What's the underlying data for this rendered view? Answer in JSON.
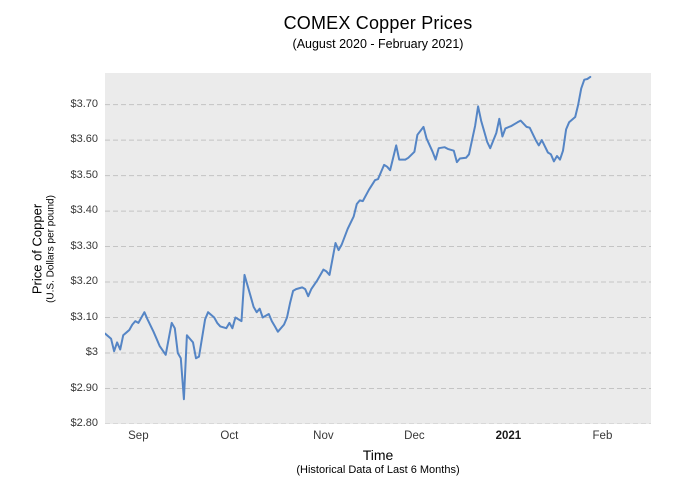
{
  "title": "COMEX Copper Prices",
  "subtitle": "(August 2020 - February 2021)",
  "y_axis": {
    "title": "Price of Copper",
    "subtitle": "(U.S. Dollars per pound)"
  },
  "x_axis": {
    "title": "Time",
    "subtitle": "(Historical Data of Last 6 Months)"
  },
  "colors": {
    "page_background": "#ffffff",
    "plot_background": "#ebebeb",
    "gridline": "#c4c4c4",
    "line": "#5585c5",
    "tick_text": "#373737"
  },
  "chart_data": {
    "type": "line",
    "title": "COMEX Copper Prices",
    "subtitle": "(August 2020 - February 2021)",
    "xlabel": "Time (Historical Data of Last 6 Months)",
    "ylabel": "Price of Copper (U.S. Dollars per pound)",
    "legend": "none",
    "grid": "horizontal-dashed",
    "ylim": [
      2.8,
      3.789
    ],
    "x_range": {
      "start": "2020-08-21",
      "end": "2021-02-17"
    },
    "y_ticks": [
      {
        "label": "$3.70",
        "value": 3.7
      },
      {
        "label": "$3.60",
        "value": 3.6
      },
      {
        "label": "$3.50",
        "value": 3.5
      },
      {
        "label": "$3.40",
        "value": 3.4
      },
      {
        "label": "$3.30",
        "value": 3.3
      },
      {
        "label": "$3.20",
        "value": 3.2
      },
      {
        "label": "$3.10",
        "value": 3.1
      },
      {
        "label": "$3",
        "value": 3.0
      },
      {
        "label": "$2.90",
        "value": 2.9
      },
      {
        "label": "$2.80",
        "value": 2.8
      }
    ],
    "x_ticks": [
      {
        "label": "Sep",
        "date": "2020-09-01",
        "bold": false
      },
      {
        "label": "Oct",
        "date": "2020-10-01",
        "bold": false
      },
      {
        "label": "Nov",
        "date": "2020-11-01",
        "bold": false
      },
      {
        "label": "Dec",
        "date": "2020-12-01",
        "bold": false
      },
      {
        "label": "2021",
        "date": "2021-01-01",
        "bold": true
      },
      {
        "label": "Feb",
        "date": "2021-02-01",
        "bold": false
      }
    ],
    "series": [
      {
        "color": "#5585c5",
        "points": [
          [
            "2020-08-21",
            3.055
          ],
          [
            "2020-08-23",
            3.04
          ],
          [
            "2020-08-24",
            3.005
          ],
          [
            "2020-08-25",
            3.03
          ],
          [
            "2020-08-26",
            3.01
          ],
          [
            "2020-08-27",
            3.05
          ],
          [
            "2020-08-29",
            3.065
          ],
          [
            "2020-08-30",
            3.08
          ],
          [
            "2020-08-31",
            3.09
          ],
          [
            "2020-09-01",
            3.085
          ],
          [
            "2020-09-02",
            3.1
          ],
          [
            "2020-09-03",
            3.115
          ],
          [
            "2020-09-04",
            3.095
          ],
          [
            "2020-09-06",
            3.06
          ],
          [
            "2020-09-07",
            3.04
          ],
          [
            "2020-09-08",
            3.02
          ],
          [
            "2020-09-10",
            2.995
          ],
          [
            "2020-09-11",
            3.04
          ],
          [
            "2020-09-12",
            3.085
          ],
          [
            "2020-09-13",
            3.07
          ],
          [
            "2020-09-14",
            3.0
          ],
          [
            "2020-09-15",
            2.985
          ],
          [
            "2020-09-16",
            2.87
          ],
          [
            "2020-09-17",
            3.05
          ],
          [
            "2020-09-19",
            3.03
          ],
          [
            "2020-09-20",
            2.985
          ],
          [
            "2020-09-21",
            2.99
          ],
          [
            "2020-09-23",
            3.095
          ],
          [
            "2020-09-24",
            3.115
          ],
          [
            "2020-09-26",
            3.1
          ],
          [
            "2020-09-27",
            3.085
          ],
          [
            "2020-09-28",
            3.075
          ],
          [
            "2020-09-30",
            3.07
          ],
          [
            "2020-10-01",
            3.085
          ],
          [
            "2020-10-02",
            3.07
          ],
          [
            "2020-10-03",
            3.1
          ],
          [
            "2020-10-05",
            3.09
          ],
          [
            "2020-10-06",
            3.22
          ],
          [
            "2020-10-08",
            3.16
          ],
          [
            "2020-10-09",
            3.13
          ],
          [
            "2020-10-10",
            3.115
          ],
          [
            "2020-10-11",
            3.125
          ],
          [
            "2020-10-12",
            3.1
          ],
          [
            "2020-10-14",
            3.11
          ],
          [
            "2020-10-15",
            3.09
          ],
          [
            "2020-10-16",
            3.075
          ],
          [
            "2020-10-17",
            3.06
          ],
          [
            "2020-10-19",
            3.08
          ],
          [
            "2020-10-20",
            3.1
          ],
          [
            "2020-10-21",
            3.14
          ],
          [
            "2020-10-22",
            3.175
          ],
          [
            "2020-10-23",
            3.18
          ],
          [
            "2020-10-25",
            3.185
          ],
          [
            "2020-10-26",
            3.18
          ],
          [
            "2020-10-27",
            3.16
          ],
          [
            "2020-10-28",
            3.18
          ],
          [
            "2020-10-30",
            3.205
          ],
          [
            "2020-10-31",
            3.22
          ],
          [
            "2020-11-01",
            3.235
          ],
          [
            "2020-11-02",
            3.23
          ],
          [
            "2020-11-03",
            3.22
          ],
          [
            "2020-11-05",
            3.31
          ],
          [
            "2020-11-06",
            3.29
          ],
          [
            "2020-11-07",
            3.305
          ],
          [
            "2020-11-09",
            3.35
          ],
          [
            "2020-11-11",
            3.385
          ],
          [
            "2020-11-12",
            3.42
          ],
          [
            "2020-11-13",
            3.43
          ],
          [
            "2020-11-14",
            3.428
          ],
          [
            "2020-11-16",
            3.46
          ],
          [
            "2020-11-18",
            3.487
          ],
          [
            "2020-11-19",
            3.49
          ],
          [
            "2020-11-21",
            3.53
          ],
          [
            "2020-11-22",
            3.525
          ],
          [
            "2020-11-23",
            3.515
          ],
          [
            "2020-11-25",
            3.585
          ],
          [
            "2020-11-26",
            3.545
          ],
          [
            "2020-11-28",
            3.545
          ],
          [
            "2020-11-29",
            3.55
          ],
          [
            "2020-12-01",
            3.567
          ],
          [
            "2020-12-02",
            3.615
          ],
          [
            "2020-12-04",
            3.637
          ],
          [
            "2020-12-05",
            3.605
          ],
          [
            "2020-12-07",
            3.567
          ],
          [
            "2020-12-08",
            3.545
          ],
          [
            "2020-12-09",
            3.577
          ],
          [
            "2020-12-11",
            3.58
          ],
          [
            "2020-12-12",
            3.575
          ],
          [
            "2020-12-14",
            3.57
          ],
          [
            "2020-12-15",
            3.538
          ],
          [
            "2020-12-16",
            3.548
          ],
          [
            "2020-12-18",
            3.55
          ],
          [
            "2020-12-19",
            3.56
          ],
          [
            "2020-12-21",
            3.64
          ],
          [
            "2020-12-22",
            3.695
          ],
          [
            "2020-12-23",
            3.655
          ],
          [
            "2020-12-25",
            3.595
          ],
          [
            "2020-12-26",
            3.577
          ],
          [
            "2020-12-28",
            3.62
          ],
          [
            "2020-12-29",
            3.66
          ],
          [
            "2020-12-30",
            3.61
          ],
          [
            "2020-12-31",
            3.633
          ],
          [
            "2021-01-02",
            3.64
          ],
          [
            "2021-01-04",
            3.65
          ],
          [
            "2021-01-05",
            3.655
          ],
          [
            "2021-01-07",
            3.637
          ],
          [
            "2021-01-08",
            3.635
          ],
          [
            "2021-01-10",
            3.6
          ],
          [
            "2021-01-11",
            3.585
          ],
          [
            "2021-01-12",
            3.6
          ],
          [
            "2021-01-14",
            3.565
          ],
          [
            "2021-01-15",
            3.56
          ],
          [
            "2021-01-16",
            3.54
          ],
          [
            "2021-01-17",
            3.555
          ],
          [
            "2021-01-18",
            3.545
          ],
          [
            "2021-01-19",
            3.57
          ],
          [
            "2021-01-20",
            3.63
          ],
          [
            "2021-01-21",
            3.65
          ],
          [
            "2021-01-23",
            3.665
          ],
          [
            "2021-01-24",
            3.7
          ],
          [
            "2021-01-25",
            3.745
          ],
          [
            "2021-01-26",
            3.77
          ],
          [
            "2021-01-27",
            3.772
          ],
          [
            "2021-01-28",
            3.778
          ]
        ]
      }
    ]
  }
}
